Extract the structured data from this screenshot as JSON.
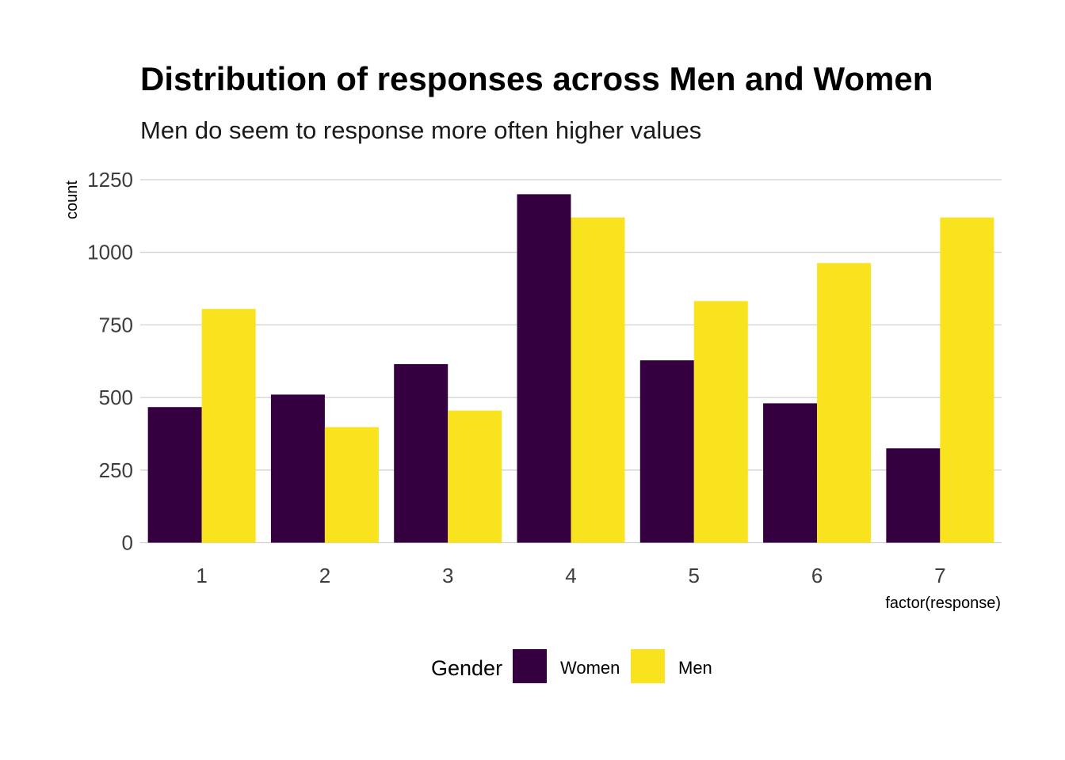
{
  "chart_data": {
    "type": "bar",
    "title": "Distribution of responses across Men and Women",
    "subtitle": "Men do seem to response more often higher values",
    "xlabel": "factor(response)",
    "ylabel": "count",
    "categories": [
      "1",
      "2",
      "3",
      "4",
      "5",
      "6",
      "7"
    ],
    "series": [
      {
        "name": "Women",
        "color": "#35003F",
        "values": [
          467,
          510,
          615,
          1200,
          628,
          480,
          325
        ]
      },
      {
        "name": "Men",
        "color": "#F9E21E",
        "values": [
          805,
          398,
          455,
          1120,
          832,
          963,
          1120
        ]
      }
    ],
    "ylim": [
      0,
      1250
    ],
    "yticks": [
      0,
      250,
      500,
      750,
      1000,
      1250
    ],
    "grid": "horizontal",
    "legend": {
      "title": "Gender",
      "position": "bottom"
    }
  }
}
